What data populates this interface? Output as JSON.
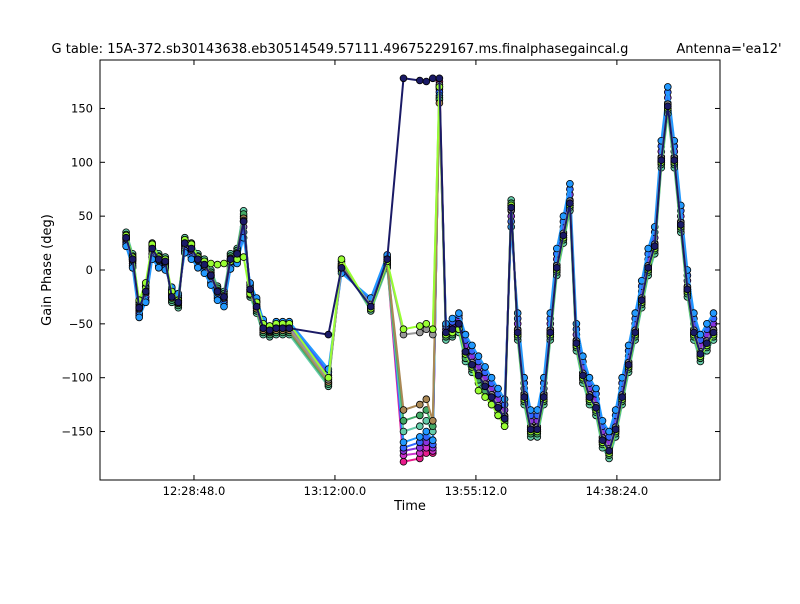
{
  "title": "G table: 15A-372.sb30143638.eb30514549.57111.49675229167.ms.finalphasegaincal.g",
  "antenna_label": "Antenna='ea12'",
  "chart_data": {
    "type": "line",
    "title": "G table: 15A-372.sb30143638.eb30514549.57111.49675229167.ms.finalphasegaincal.g",
    "annotation": "Antenna='ea12'",
    "xlabel": "Time",
    "ylabel": "Gain Phase (deg)",
    "x_unit": "clock time (hh:mm:ss)",
    "xlim": [
      "12:00:00",
      "15:10:00"
    ],
    "ylim": [
      -195,
      195
    ],
    "x_ticks": [
      "12:28:48.0",
      "13:12:00.0",
      "13:55:12.0",
      "14:38:24.0"
    ],
    "y_ticks": [
      -150,
      -100,
      -50,
      0,
      50,
      100,
      150
    ],
    "grid": false,
    "legend": "none",
    "marker": "circle",
    "x": [
      "12:08:00",
      "12:10:00",
      "12:12:00",
      "12:14:00",
      "12:16:00",
      "12:18:00",
      "12:20:00",
      "12:22:00",
      "12:24:00",
      "12:26:00",
      "12:28:00",
      "12:30:00",
      "12:32:00",
      "12:34:00",
      "12:36:00",
      "12:38:00",
      "12:40:00",
      "12:42:00",
      "12:44:00",
      "12:46:00",
      "12:48:00",
      "12:50:00",
      "12:52:00",
      "12:54:00",
      "12:56:00",
      "12:58:00",
      "13:10:00",
      "13:14:00",
      "13:23:00",
      "13:28:00",
      "13:33:00",
      "13:38:00",
      "13:40:00",
      "13:42:00",
      "13:44:00",
      "13:46:00",
      "13:48:00",
      "13:50:00",
      "13:52:00",
      "13:54:00",
      "13:56:00",
      "13:58:00",
      "14:00:00",
      "14:02:00",
      "14:04:00",
      "14:06:00",
      "14:08:00",
      "14:10:00",
      "14:12:00",
      "14:14:00",
      "14:16:00",
      "14:18:00",
      "14:20:00",
      "14:22:00",
      "14:24:00",
      "14:26:00",
      "14:28:00",
      "14:30:00",
      "14:32:00",
      "14:34:00",
      "14:36:00",
      "14:38:00",
      "14:40:00",
      "14:42:00",
      "14:44:00",
      "14:46:00",
      "14:48:00",
      "14:50:00",
      "14:52:00",
      "14:54:00",
      "14:56:00",
      "14:58:00",
      "15:00:00",
      "15:02:00",
      "15:04:00",
      "15:06:00",
      "15:08:00"
    ],
    "series": [
      {
        "color": "#e81c8c",
        "values": [
          30,
          10,
          -35,
          -20,
          20,
          10,
          8,
          -25,
          -30,
          25,
          20,
          10,
          5,
          -5,
          -20,
          -25,
          10,
          15,
          50,
          -20,
          -35,
          -55,
          -60,
          -58,
          -58,
          -58,
          -105,
          5,
          -35,
          5,
          -178,
          -175,
          -170,
          -170,
          175,
          -60,
          -55,
          -50,
          -80,
          -90,
          -100,
          -110,
          -120,
          -130,
          -140,
          60,
          -60,
          -120,
          -150,
          -150,
          -120,
          -60,
          0,
          30,
          60,
          -70,
          -100,
          -120,
          -130,
          -160,
          -170,
          -150,
          -120,
          -90,
          -60,
          -30,
          0,
          20,
          100,
          150,
          100,
          40,
          -20,
          -60,
          -80,
          -70,
          -60
        ]
      },
      {
        "color": "#cc33cc",
        "values": [
          28,
          8,
          -38,
          -22,
          18,
          8,
          6,
          -22,
          -28,
          22,
          18,
          8,
          3,
          -8,
          -22,
          -28,
          8,
          12,
          45,
          -18,
          -32,
          -52,
          -58,
          -55,
          -55,
          -55,
          -100,
          3,
          -32,
          8,
          -172,
          -170,
          -165,
          -168,
          170,
          -58,
          -52,
          -48,
          -75,
          -85,
          -95,
          -105,
          -115,
          -125,
          -135,
          55,
          -55,
          -115,
          -145,
          -145,
          -115,
          -55,
          5,
          35,
          65,
          -65,
          -95,
          -115,
          -125,
          -155,
          -165,
          -145,
          -115,
          -85,
          -55,
          -25,
          5,
          25,
          105,
          155,
          105,
          45,
          -15,
          -55,
          -75,
          -65,
          -55
        ]
      },
      {
        "color": "#8833dd",
        "values": [
          26,
          6,
          -40,
          -25,
          15,
          6,
          4,
          -20,
          -26,
          20,
          15,
          6,
          1,
          -10,
          -24,
          -30,
          5,
          10,
          40,
          -16,
          -30,
          -50,
          -56,
          -52,
          -52,
          -52,
          -98,
          1,
          -30,
          10,
          -168,
          -165,
          -160,
          -165,
          168,
          -55,
          -50,
          -45,
          -70,
          -80,
          -90,
          -100,
          -110,
          -120,
          -130,
          50,
          -50,
          -110,
          -140,
          -140,
          -110,
          -50,
          10,
          40,
          70,
          -60,
          -90,
          -110,
          -120,
          -150,
          -160,
          -140,
          -110,
          -80,
          -50,
          -20,
          10,
          30,
          110,
          160,
          110,
          50,
          -10,
          -50,
          -70,
          -60,
          -50
        ]
      },
      {
        "color": "#3366ff",
        "values": [
          24,
          4,
          -42,
          -28,
          12,
          4,
          2,
          -18,
          -24,
          18,
          12,
          4,
          -1,
          -12,
          -26,
          -32,
          3,
          8,
          35,
          -14,
          -28,
          -48,
          -54,
          -50,
          -50,
          -50,
          -95,
          -1,
          -28,
          12,
          -165,
          -160,
          -155,
          -162,
          165,
          -52,
          -48,
          -42,
          -65,
          -75,
          -85,
          -95,
          -105,
          -115,
          -125,
          45,
          -45,
          -105,
          -135,
          -135,
          -105,
          -45,
          15,
          45,
          75,
          -55,
          -85,
          -105,
          -115,
          -145,
          -155,
          -135,
          -105,
          -75,
          -45,
          -15,
          15,
          35,
          115,
          165,
          115,
          55,
          -5,
          -45,
          -65,
          -55,
          -45
        ]
      },
      {
        "color": "#2299ff",
        "values": [
          22,
          2,
          -44,
          -30,
          10,
          2,
          0,
          -16,
          -22,
          16,
          10,
          2,
          -3,
          -14,
          -28,
          -34,
          1,
          6,
          30,
          -12,
          -26,
          -46,
          -52,
          -48,
          -48,
          -48,
          -92,
          -3,
          -26,
          14,
          -160,
          -155,
          -150,
          -158,
          162,
          -50,
          -45,
          -40,
          -60,
          -70,
          -80,
          -90,
          -100,
          -110,
          -120,
          40,
          -40,
          -100,
          -130,
          -130,
          -100,
          -40,
          20,
          50,
          80,
          -50,
          -80,
          -100,
          -110,
          -140,
          -150,
          -130,
          -100,
          -70,
          -40,
          -10,
          20,
          40,
          120,
          170,
          120,
          60,
          0,
          -40,
          -60,
          -50,
          -40
        ]
      },
      {
        "color": "#66ccaa",
        "values": [
          35,
          15,
          -30,
          -15,
          25,
          15,
          12,
          -30,
          -35,
          30,
          25,
          15,
          10,
          0,
          -15,
          -20,
          15,
          20,
          55,
          -25,
          -40,
          -60,
          -62,
          -60,
          -60,
          -60,
          -108,
          8,
          -38,
          2,
          -150,
          -145,
          -140,
          -150,
          160,
          -65,
          -62,
          -58,
          -85,
          -95,
          -105,
          -115,
          -125,
          -135,
          -145,
          65,
          -65,
          -125,
          -155,
          -155,
          -125,
          -65,
          -5,
          25,
          55,
          -75,
          -105,
          -125,
          -135,
          -165,
          -175,
          -155,
          -125,
          -95,
          -65,
          -35,
          -5,
          15,
          95,
          145,
          95,
          35,
          -25,
          -65,
          -85,
          -75,
          -65
        ]
      },
      {
        "color": "#44aa66",
        "values": [
          33,
          13,
          -32,
          -17,
          23,
          13,
          10,
          -28,
          -33,
          28,
          23,
          13,
          8,
          -2,
          -17,
          -22,
          13,
          18,
          52,
          -23,
          -38,
          -58,
          -60,
          -58,
          -58,
          -58,
          -106,
          6,
          -36,
          4,
          -140,
          -135,
          -130,
          -145,
          158,
          -62,
          -60,
          -55,
          -82,
          -92,
          -102,
          -112,
          -122,
          -132,
          -142,
          62,
          -62,
          -122,
          -152,
          -152,
          -122,
          -62,
          -2,
          28,
          58,
          -72,
          -102,
          -122,
          -132,
          -162,
          -172,
          -152,
          -122,
          -92,
          -62,
          -32,
          -2,
          18,
          98,
          148,
          98,
          38,
          -22,
          -62,
          -82,
          -72,
          -62
        ]
      },
      {
        "color": "#aa8855",
        "values": [
          31,
          11,
          -34,
          -19,
          21,
          11,
          9,
          -26,
          -31,
          26,
          21,
          11,
          6,
          -4,
          -19,
          -24,
          11,
          16,
          48,
          -21,
          -36,
          -56,
          -58,
          -56,
          -56,
          -56,
          -104,
          4,
          -34,
          6,
          -130,
          -125,
          -120,
          -140,
          155,
          -60,
          -58,
          -52,
          -78,
          -88,
          -98,
          -108,
          -118,
          -128,
          -138,
          58,
          -58,
          -118,
          -148,
          -148,
          -118,
          -58,
          2,
          32,
          62,
          -68,
          -98,
          -118,
          -128,
          -158,
          -168,
          -148,
          -118,
          -88,
          -58,
          -28,
          2,
          22,
          102,
          152,
          102,
          42,
          -18,
          -58,
          -78,
          -68,
          -58
        ]
      },
      {
        "color": "#999999",
        "values": [
          29,
          9,
          -36,
          -21,
          19,
          9,
          7,
          -24,
          -29,
          24,
          19,
          9,
          4,
          -6,
          -21,
          -26,
          9,
          14,
          46,
          -19,
          -34,
          -54,
          -57,
          -54,
          -54,
          -54,
          -102,
          2,
          -32,
          8,
          -60,
          -58,
          -55,
          -60,
          172,
          -58,
          -56,
          -50,
          -76,
          -86,
          -96,
          -106,
          -116,
          -126,
          -136,
          56,
          -56,
          -116,
          -146,
          -146,
          -116,
          -56,
          4,
          34,
          64,
          -66,
          -96,
          -116,
          -126,
          -156,
          -166,
          -146,
          -116,
          -86,
          -56,
          -26,
          4,
          24,
          104,
          154,
          104,
          44,
          -16,
          -56,
          -76,
          -66,
          -56
        ]
      },
      {
        "color": "#99ff33",
        "values": [
          32,
          12,
          -28,
          -12,
          24,
          12,
          10,
          -20,
          -28,
          28,
          24,
          12,
          8,
          6,
          5,
          6,
          8,
          10,
          12,
          -22,
          -30,
          -50,
          -52,
          -50,
          -50,
          -50,
          -100,
          10,
          -36,
          8,
          -55,
          -52,
          -50,
          -55,
          170,
          -60,
          -58,
          -55,
          -78,
          -90,
          -112,
          -118,
          -125,
          -135,
          -145,
          60,
          -60,
          -120,
          -150,
          -150,
          -120,
          -60,
          0,
          30,
          60,
          -70,
          -100,
          -120,
          -130,
          -160,
          -170,
          -150,
          -120,
          -90,
          -60,
          -30,
          0,
          20,
          100,
          150,
          100,
          40,
          -20,
          -60,
          -80,
          -70,
          -60
        ]
      },
      {
        "color": "#1a1a66",
        "values": [
          30,
          10,
          -35,
          -20,
          20,
          10,
          8,
          -25,
          -30,
          25,
          20,
          10,
          5,
          -5,
          -20,
          -25,
          10,
          15,
          45,
          -18,
          -34,
          -54,
          -56,
          -54,
          -54,
          -54,
          -60,
          2,
          -34,
          10,
          178,
          176,
          175,
          178,
          178,
          -58,
          -55,
          -50,
          -76,
          -88,
          -98,
          -108,
          -118,
          -128,
          -138,
          58,
          -58,
          -118,
          -148,
          -148,
          -118,
          -58,
          2,
          32,
          62,
          -68,
          -98,
          -118,
          -128,
          -158,
          -168,
          -148,
          -118,
          -88,
          -58,
          -28,
          2,
          22,
          102,
          152,
          102,
          42,
          -18,
          -58,
          -78,
          -68,
          -58
        ]
      }
    ]
  }
}
